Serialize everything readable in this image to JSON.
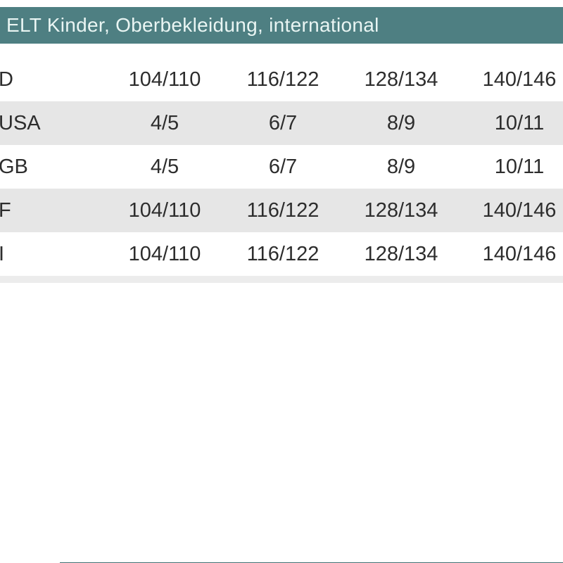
{
  "title_bar": {
    "title": "ELT Kinder, Oberbekleidung, international"
  },
  "size_table": {
    "rows": [
      {
        "label": "D",
        "values": [
          "104/110",
          "116/122",
          "128/134",
          "140/146"
        ]
      },
      {
        "label": "USA",
        "values": [
          "4/5",
          "6/7",
          "8/9",
          "10/11"
        ]
      },
      {
        "label": "GB",
        "values": [
          "4/5",
          "6/7",
          "8/9",
          "10/11"
        ]
      },
      {
        "label": "F",
        "values": [
          "104/110",
          "116/122",
          "128/134",
          "140/146"
        ]
      },
      {
        "label": "I",
        "values": [
          "104/110",
          "116/122",
          "128/134",
          "140/146"
        ]
      }
    ]
  },
  "colors": {
    "accent_teal": "#4e7f82",
    "title_text": "#e9f5f3",
    "row_alt_bg": "#e6e6e6",
    "divider_bg": "#ececec",
    "cell_text": "#2d2d2d"
  }
}
